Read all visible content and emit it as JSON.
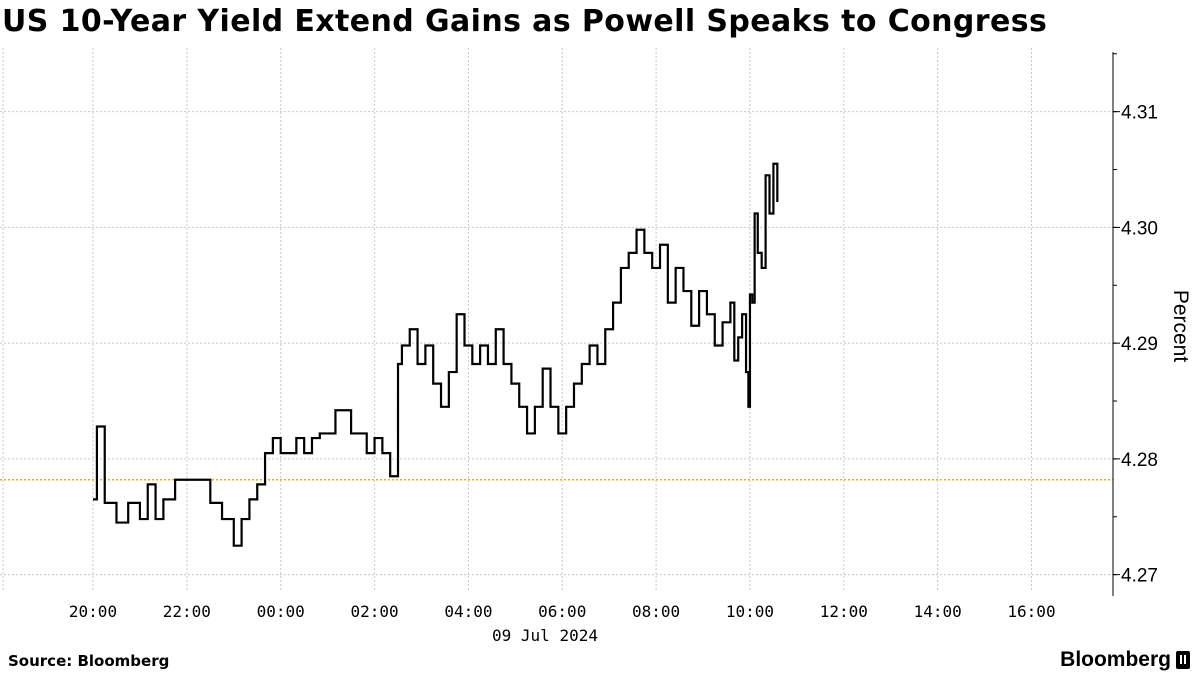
{
  "chart_data": {
    "type": "line",
    "title": "US 10-Year Yield Extend Gains as Powell Speaks to Congress",
    "ylabel": "Percent",
    "xlabel_date": "09 Jul 2024",
    "x_ticks": [
      "20:00",
      "22:00",
      "00:00",
      "02:00",
      "04:00",
      "06:00",
      "08:00",
      "10:00",
      "12:00",
      "14:00",
      "16:00"
    ],
    "y_ticks": [
      4.27,
      4.28,
      4.29,
      4.3,
      4.31
    ],
    "ylim": [
      4.2685,
      4.3155
    ],
    "x_range_hours": [
      "19:30",
      "17:30"
    ],
    "grid": true,
    "reference_line": {
      "value": 4.2782,
      "color": "#e8b21a",
      "style": "dotted"
    },
    "series": [
      {
        "color": "#000000",
        "step": true,
        "x": [
          "20:00",
          "20:05",
          "20:15",
          "20:30",
          "20:45",
          "21:00",
          "21:10",
          "21:20",
          "21:30",
          "21:45",
          "22:00",
          "22:15",
          "22:30",
          "22:45",
          "23:00",
          "23:10",
          "23:20",
          "23:30",
          "23:40",
          "23:50",
          "00:00",
          "00:10",
          "00:20",
          "00:30",
          "00:40",
          "00:50",
          "01:00",
          "01:10",
          "01:20",
          "01:30",
          "01:40",
          "01:50",
          "02:00",
          "02:10",
          "02:20",
          "02:30",
          "02:35",
          "02:45",
          "02:55",
          "03:05",
          "03:15",
          "03:25",
          "03:35",
          "03:45",
          "03:55",
          "04:05",
          "04:15",
          "04:25",
          "04:35",
          "04:45",
          "04:55",
          "05:05",
          "05:15",
          "05:25",
          "05:35",
          "05:45",
          "05:55",
          "06:05",
          "06:15",
          "06:25",
          "06:35",
          "06:45",
          "06:55",
          "07:05",
          "07:15",
          "07:25",
          "07:35",
          "07:45",
          "07:55",
          "08:05",
          "08:15",
          "08:25",
          "08:35",
          "08:45",
          "08:55",
          "09:05",
          "09:15",
          "09:25",
          "09:35",
          "09:40",
          "09:45",
          "09:50",
          "09:55",
          "09:58",
          "10:00",
          "10:03",
          "10:06",
          "10:10",
          "10:15",
          "10:20",
          "10:25",
          "10:30",
          "10:35"
        ],
        "values": [
          4.2765,
          4.2828,
          4.2762,
          4.2745,
          4.2762,
          4.2748,
          4.2778,
          4.2748,
          4.2765,
          4.2782,
          4.2782,
          4.2782,
          4.2762,
          4.2748,
          4.2725,
          4.2748,
          4.2765,
          4.2778,
          4.2805,
          4.2818,
          4.2805,
          4.2805,
          4.2818,
          4.2805,
          4.2818,
          4.2822,
          4.2822,
          4.2842,
          4.2842,
          4.2822,
          4.2822,
          4.2805,
          4.2818,
          4.2805,
          4.2785,
          4.2882,
          4.2898,
          4.2912,
          4.2882,
          4.2898,
          4.2865,
          4.2845,
          4.2875,
          4.2925,
          4.2898,
          4.2882,
          4.2898,
          4.2882,
          4.2912,
          4.2882,
          4.2865,
          4.2845,
          4.2822,
          4.2845,
          4.2878,
          4.2845,
          4.2822,
          4.2845,
          4.2865,
          4.2882,
          4.2898,
          4.2882,
          4.2912,
          4.2935,
          4.2965,
          4.2978,
          4.2998,
          4.2978,
          4.2965,
          4.2985,
          4.2935,
          4.2965,
          4.2945,
          4.2915,
          4.2945,
          4.2925,
          4.2898,
          4.2918,
          4.2935,
          4.2885,
          4.2905,
          4.2925,
          4.2875,
          4.2845,
          4.2942,
          4.2935,
          4.3012,
          4.2978,
          4.2965,
          4.3045,
          4.3012,
          4.3055,
          4.3022
        ]
      }
    ]
  },
  "footer": {
    "source": "Source: Bloomberg",
    "brand": "Bloomberg"
  }
}
